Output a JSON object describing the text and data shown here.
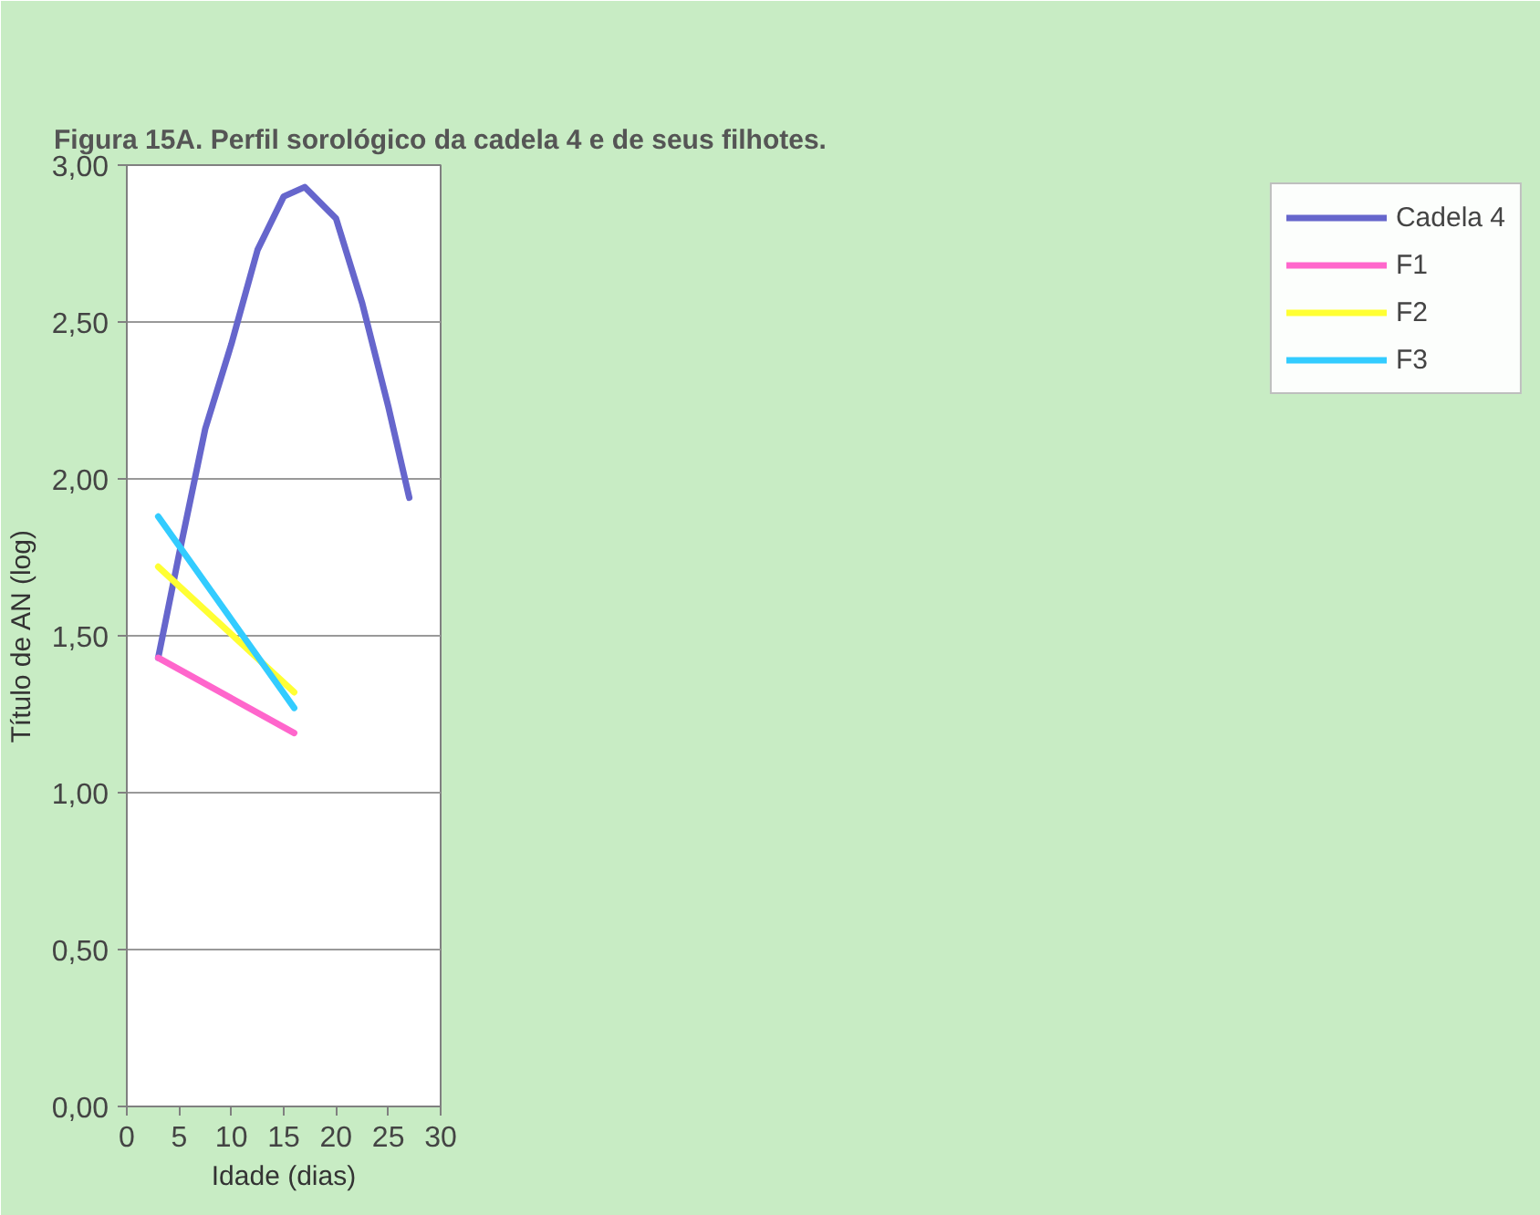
{
  "chart_data": {
    "type": "line",
    "title": "Figura 15A. Perfil sorológico da cadela 4 e de seus filhotes.",
    "xlabel": "Idade (dias)",
    "ylabel": "Título de AN (log)",
    "xlim": [
      0,
      30
    ],
    "xticks": [
      0,
      5,
      10,
      15,
      20,
      25,
      30
    ],
    "ylim": [
      0,
      3
    ],
    "yticks": [
      {
        "value": 0,
        "label": "0,00"
      },
      {
        "value": 0.5,
        "label": "0,50"
      },
      {
        "value": 1,
        "label": "1,00"
      },
      {
        "value": 1.5,
        "label": "1,50"
      },
      {
        "value": 2,
        "label": "2,00"
      },
      {
        "value": 2.5,
        "label": "2,50"
      },
      {
        "value": 3,
        "label": "3,00"
      }
    ],
    "grid": "y",
    "legend": "right",
    "marker": "none",
    "line_style": "solid",
    "series": [
      {
        "name": "Cadela 4",
        "color": "#6666cc",
        "x": [
          3,
          5,
          7.5,
          10,
          12.5,
          15,
          17,
          20,
          22.5,
          25,
          27
        ],
        "values": [
          1.43,
          1.76,
          2.16,
          2.43,
          2.73,
          2.9,
          2.93,
          2.83,
          2.56,
          2.23,
          1.94
        ]
      },
      {
        "name": "F1",
        "color": "#ff66cc",
        "x": [
          3,
          16
        ],
        "values": [
          1.43,
          1.19
        ]
      },
      {
        "name": "F2",
        "color": "#ffff33",
        "x": [
          3,
          16
        ],
        "values": [
          1.72,
          1.32
        ]
      },
      {
        "name": "F3",
        "color": "#33ccff",
        "x": [
          3,
          16
        ],
        "values": [
          1.88,
          1.27
        ]
      }
    ]
  }
}
